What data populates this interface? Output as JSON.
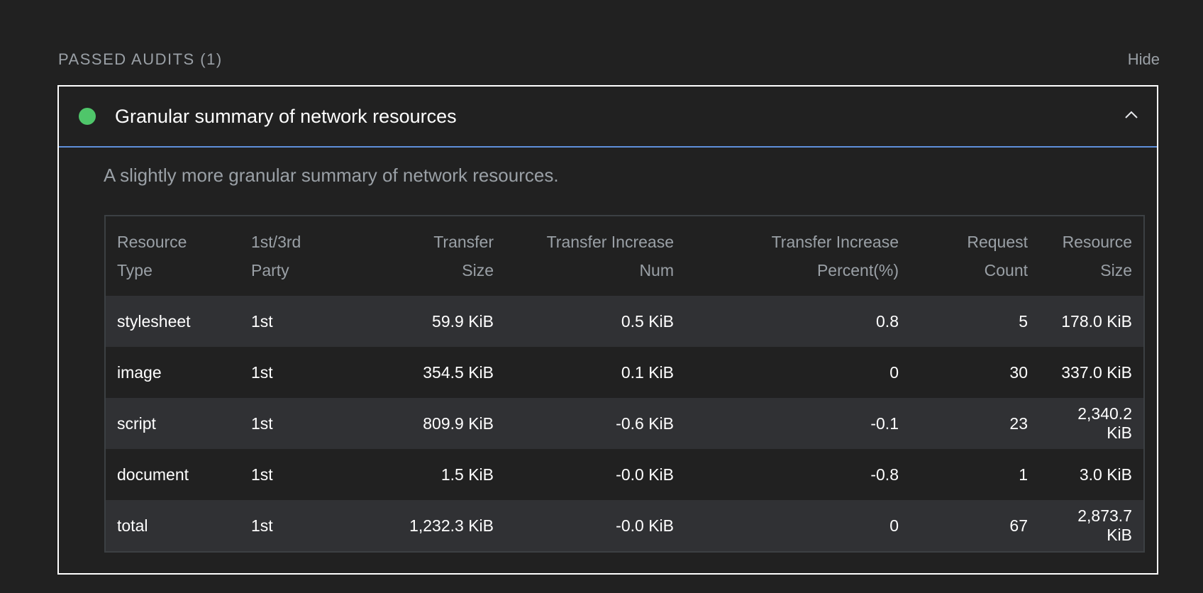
{
  "section": {
    "title": "PASSED AUDITS (1)",
    "hide_label": "Hide"
  },
  "audit": {
    "title": "Granular summary of network resources",
    "status_color": "#4fc66a",
    "description": "A slightly more granular summary of network resources.",
    "expanded": true
  },
  "table": {
    "headers": [
      {
        "line1": "Resource",
        "line2": "Type"
      },
      {
        "line1": "1st/3rd",
        "line2": "Party"
      },
      {
        "line1": "Transfer",
        "line2": "Size"
      },
      {
        "line1": "Transfer Increase",
        "line2": "Num"
      },
      {
        "line1": "Transfer Increase",
        "line2": "Percent(%)"
      },
      {
        "line1": "Request",
        "line2": "Count"
      },
      {
        "line1": "Resource",
        "line2": "Size"
      }
    ],
    "rows": [
      [
        "stylesheet",
        "1st",
        "59.9 KiB",
        "0.5 KiB",
        "0.8",
        "5",
        "178.0 KiB"
      ],
      [
        "image",
        "1st",
        "354.5 KiB",
        "0.1 KiB",
        "0",
        "30",
        "337.0 KiB"
      ],
      [
        "script",
        "1st",
        "809.9 KiB",
        "-0.6 KiB",
        "-0.1",
        "23",
        "2,340.2 KiB"
      ],
      [
        "document",
        "1st",
        "1.5 KiB",
        "-0.0 KiB",
        "-0.8",
        "1",
        "3.0 KiB"
      ],
      [
        "total",
        "1st",
        "1,232.3 KiB",
        "-0.0 KiB",
        "0",
        "67",
        "2,873.7 KiB"
      ]
    ]
  }
}
